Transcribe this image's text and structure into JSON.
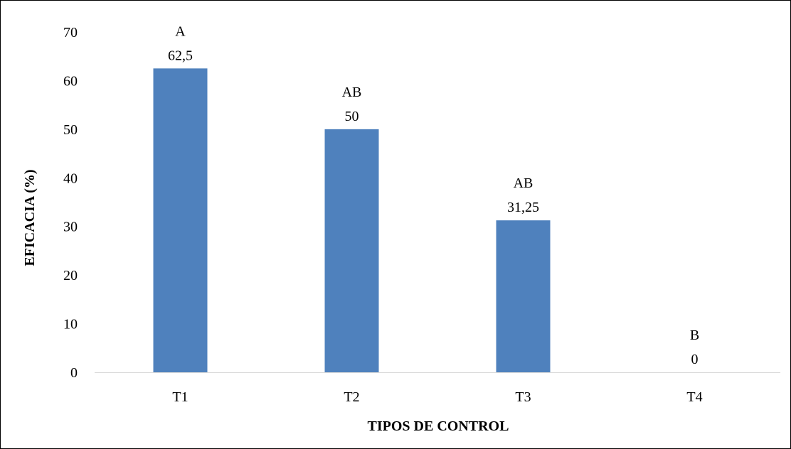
{
  "chart_data": {
    "type": "bar",
    "title": "",
    "xlabel": "TIPOS DE CONTROL",
    "ylabel": "EFICACIA (%)",
    "categories": [
      "T1",
      "T2",
      "T3",
      "T4"
    ],
    "values": [
      62.5,
      50,
      31.25,
      0
    ],
    "value_labels": [
      "62,5",
      "50",
      "31,25",
      "0"
    ],
    "group_letters": [
      "A",
      "AB",
      "AB",
      "B"
    ],
    "ylim": [
      0,
      70
    ],
    "y_ticks": [
      0,
      10,
      20,
      30,
      40,
      50,
      60,
      70
    ],
    "grid": false,
    "legend": "none",
    "bar_color": "#4f81bd",
    "axis_color": "#d9d9d9"
  }
}
